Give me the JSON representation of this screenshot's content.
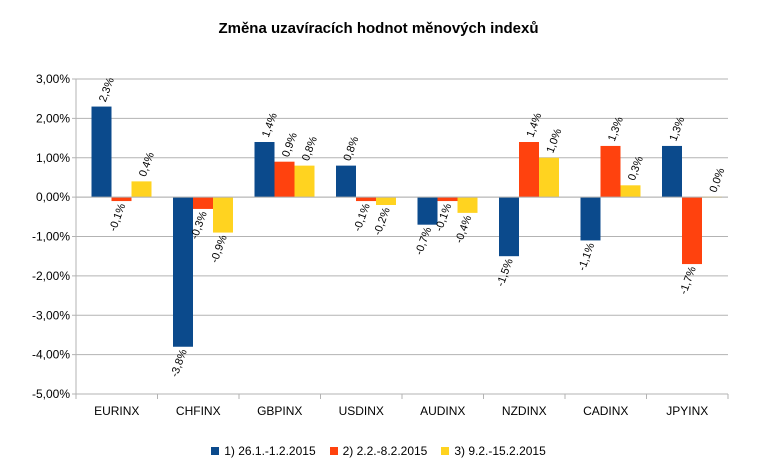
{
  "chart_data": {
    "type": "bar",
    "title": "Změna uzavíracích hodnot měnových indexů",
    "categories": [
      "EURINX",
      "CHFINX",
      "GBPINX",
      "USDINX",
      "AUDINX",
      "NZDINX",
      "CADINX",
      "JPYINX"
    ],
    "series": [
      {
        "name": "1) 26.1.-1.2.2015",
        "color": "#0B4A8C",
        "values": [
          2.3,
          -3.8,
          1.4,
          0.8,
          -0.7,
          -1.5,
          -1.1,
          1.3
        ],
        "labels": [
          "2,3%",
          "-3,8%",
          "1,4%",
          "0,8%",
          "-0,7%",
          "-1,5%",
          "-1,1%",
          "1,3%"
        ]
      },
      {
        "name": "2) 2.2.-8.2.2015",
        "color": "#FF420E",
        "values": [
          -0.1,
          -0.3,
          0.9,
          -0.1,
          -0.1,
          1.4,
          1.3,
          -1.7
        ],
        "labels": [
          "-0,1%",
          "-0,3%",
          "0,9%",
          "-0,1%",
          "-0,1%",
          "1,4%",
          "1,3%",
          "-1,7%"
        ]
      },
      {
        "name": "3) 9.2.-15.2.2015",
        "color": "#FFD320",
        "values": [
          0.4,
          -0.9,
          0.8,
          -0.2,
          -0.4,
          1.0,
          0.3,
          0.0
        ],
        "labels": [
          "0,4%",
          "-0,9%",
          "0,8%",
          "-0,2%",
          "-0,4%",
          "1,0%",
          "0,3%",
          "0,0%"
        ]
      }
    ],
    "ylim": [
      -5,
      3
    ],
    "yticks": [
      "3,00%",
      "2,00%",
      "1,00%",
      "0,00%",
      "-1,00%",
      "-2,00%",
      "-3,00%",
      "-4,00%",
      "-5,00%"
    ],
    "grid": true,
    "legend": "bottom"
  }
}
